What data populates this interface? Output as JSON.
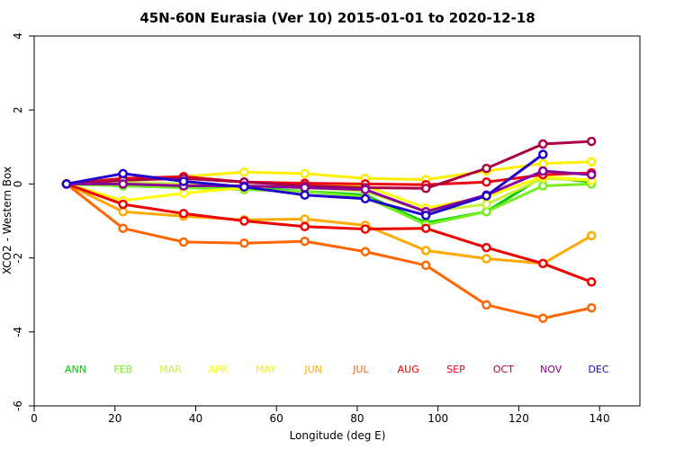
{
  "chart_data": {
    "type": "line",
    "title": "45N-60N Eurasia (Ver 10)   2015-01-01 to 2020-12-18",
    "xlabel": "Longitude (deg E)",
    "ylabel": "XCO2 - Western Box",
    "xlim": [
      0,
      150
    ],
    "ylim": [
      -6,
      4
    ],
    "xticks": [
      0,
      20,
      40,
      60,
      80,
      100,
      120,
      140
    ],
    "yticks": [
      -6,
      -4,
      -2,
      0,
      2,
      4
    ],
    "grid": false,
    "legend_placement": "bottom-inside",
    "series": [
      {
        "name": "ANN",
        "color": "#00cc00",
        "points": [
          [
            8,
            0
          ],
          [
            22,
            -0.05
          ],
          [
            37,
            -0.1
          ],
          [
            52,
            -0.1
          ],
          [
            67,
            -0.2
          ],
          [
            82,
            -0.3
          ],
          [
            97,
            -1.05
          ],
          [
            112,
            -0.75
          ],
          [
            126,
            0.2
          ],
          [
            138,
            0.05
          ]
        ]
      },
      {
        "name": "FEB",
        "color": "#77ee22",
        "points": [
          [
            8,
            0
          ],
          [
            22,
            -0.05
          ],
          [
            37,
            -0.1
          ],
          [
            52,
            -0.15
          ],
          [
            67,
            -0.2
          ],
          [
            82,
            -0.35
          ],
          [
            97,
            -1.1
          ],
          [
            112,
            -0.75
          ],
          [
            126,
            -0.05
          ],
          [
            138,
            0.0
          ]
        ]
      },
      {
        "name": "MAR",
        "color": "#c8f040",
        "points": [
          [
            8,
            0
          ],
          [
            22,
            0.05
          ],
          [
            37,
            0.0
          ],
          [
            52,
            -0.05
          ],
          [
            67,
            -0.1
          ],
          [
            82,
            -0.2
          ],
          [
            97,
            -0.75
          ],
          [
            112,
            -0.55
          ],
          [
            126,
            0.15
          ],
          [
            138,
            0.1
          ]
        ]
      },
      {
        "name": "APR",
        "color": "#ffff00",
        "points": [
          [
            8,
            0
          ],
          [
            22,
            -0.45
          ],
          [
            37,
            -0.25
          ],
          [
            52,
            -0.1
          ],
          [
            67,
            -0.05
          ],
          [
            82,
            -0.05
          ],
          [
            97,
            -0.65
          ],
          [
            112,
            -0.35
          ],
          [
            126,
            0.2
          ],
          [
            138,
            0.1
          ]
        ]
      },
      {
        "name": "MAY",
        "color": "#ffee00",
        "points": [
          [
            8,
            0
          ],
          [
            22,
            0.1
          ],
          [
            37,
            0.2
          ],
          [
            52,
            0.32
          ],
          [
            67,
            0.28
          ],
          [
            82,
            0.15
          ],
          [
            97,
            0.12
          ],
          [
            112,
            0.35
          ],
          [
            126,
            0.55
          ],
          [
            138,
            0.6
          ]
        ]
      },
      {
        "name": "JUN",
        "color": "#ffaa00",
        "points": [
          [
            8,
            0
          ],
          [
            22,
            -0.75
          ],
          [
            37,
            -0.87
          ],
          [
            52,
            -0.97
          ],
          [
            67,
            -0.95
          ],
          [
            82,
            -1.12
          ],
          [
            97,
            -1.8
          ],
          [
            112,
            -2.02
          ],
          [
            126,
            -2.15
          ],
          [
            138,
            -1.4
          ]
        ]
      },
      {
        "name": "JUL",
        "color": "#ff6600",
        "points": [
          [
            8,
            0
          ],
          [
            22,
            -1.2
          ],
          [
            37,
            -1.57
          ],
          [
            52,
            -1.6
          ],
          [
            67,
            -1.55
          ],
          [
            82,
            -1.83
          ],
          [
            97,
            -2.2
          ],
          [
            112,
            -3.27
          ],
          [
            126,
            -3.63
          ],
          [
            138,
            -3.35
          ]
        ]
      },
      {
        "name": "AUG",
        "color": "#ee0000",
        "points": [
          [
            8,
            0
          ],
          [
            22,
            -0.55
          ],
          [
            37,
            -0.8
          ],
          [
            52,
            -1.0
          ],
          [
            67,
            -1.15
          ],
          [
            82,
            -1.22
          ],
          [
            97,
            -1.2
          ],
          [
            112,
            -1.72
          ],
          [
            126,
            -2.15
          ],
          [
            138,
            -2.65
          ]
        ]
      },
      {
        "name": "SEP",
        "color": "#ee0011",
        "points": [
          [
            8,
            0
          ],
          [
            22,
            0.15
          ],
          [
            37,
            0.2
          ],
          [
            52,
            0.05
          ],
          [
            67,
            0.02
          ],
          [
            82,
            0.0
          ],
          [
            97,
            -0.02
          ],
          [
            112,
            0.05
          ],
          [
            126,
            0.25
          ],
          [
            138,
            0.3
          ]
        ]
      },
      {
        "name": "OCT",
        "color": "#aa0044",
        "points": [
          [
            8,
            0
          ],
          [
            22,
            0.1
          ],
          [
            37,
            0.15
          ],
          [
            52,
            0.05
          ],
          [
            67,
            -0.05
          ],
          [
            82,
            -0.1
          ],
          [
            97,
            -0.12
          ],
          [
            112,
            0.42
          ],
          [
            126,
            1.08
          ],
          [
            138,
            1.15
          ]
        ]
      },
      {
        "name": "NOV",
        "color": "#880099",
        "points": [
          [
            8,
            0
          ],
          [
            22,
            0.0
          ],
          [
            37,
            -0.05
          ],
          [
            52,
            -0.05
          ],
          [
            67,
            -0.1
          ],
          [
            82,
            -0.15
          ],
          [
            97,
            -0.75
          ],
          [
            112,
            -0.3
          ],
          [
            126,
            0.35
          ],
          [
            138,
            0.25
          ]
        ]
      },
      {
        "name": "DEC",
        "color": "#2200cc",
        "points": [
          [
            8,
            0
          ],
          [
            22,
            0.28
          ],
          [
            37,
            0.07
          ],
          [
            52,
            -0.08
          ],
          [
            67,
            -0.3
          ],
          [
            82,
            -0.4
          ],
          [
            97,
            -0.85
          ],
          [
            112,
            -0.32
          ],
          [
            126,
            0.8
          ]
        ]
      }
    ]
  }
}
